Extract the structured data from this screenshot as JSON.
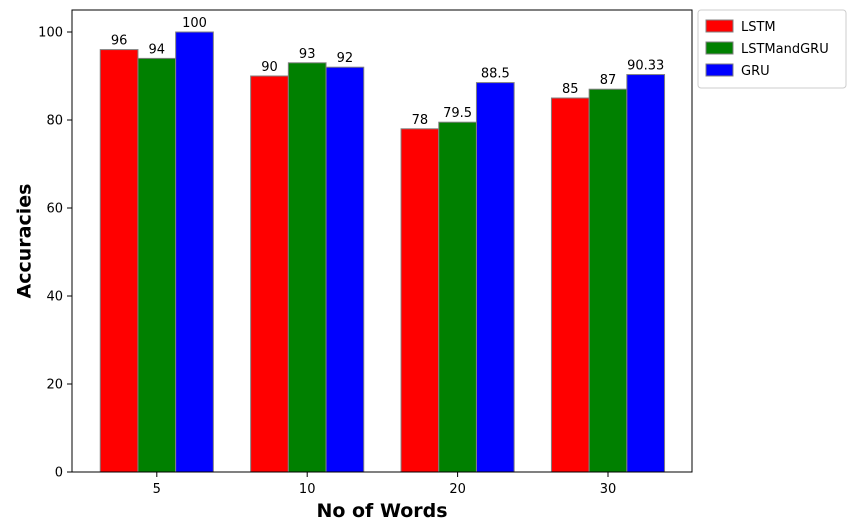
{
  "chart_data": {
    "type": "bar",
    "categories": [
      "5",
      "10",
      "20",
      "30"
    ],
    "series": [
      {
        "name": "LSTM",
        "color": "#ff0000",
        "values": [
          96,
          90,
          78,
          85
        ],
        "labels": [
          "96",
          "90",
          "78",
          "85"
        ]
      },
      {
        "name": "LSTMandGRU",
        "color": "#008000",
        "values": [
          94,
          93,
          79.5,
          87
        ],
        "labels": [
          "94",
          "93",
          "79.5",
          "87"
        ]
      },
      {
        "name": "GRU",
        "color": "#0000ff",
        "values": [
          100,
          92,
          88.5,
          90.33
        ],
        "labels": [
          "100",
          "92",
          "88.5",
          "90.33"
        ]
      }
    ],
    "xlabel": "No of Words",
    "ylabel": "Accuracies",
    "ylim": [
      0,
      105
    ],
    "yticks": [
      0,
      20,
      40,
      60,
      80,
      100
    ],
    "grid": false,
    "legend_position": "outside-top-right"
  }
}
